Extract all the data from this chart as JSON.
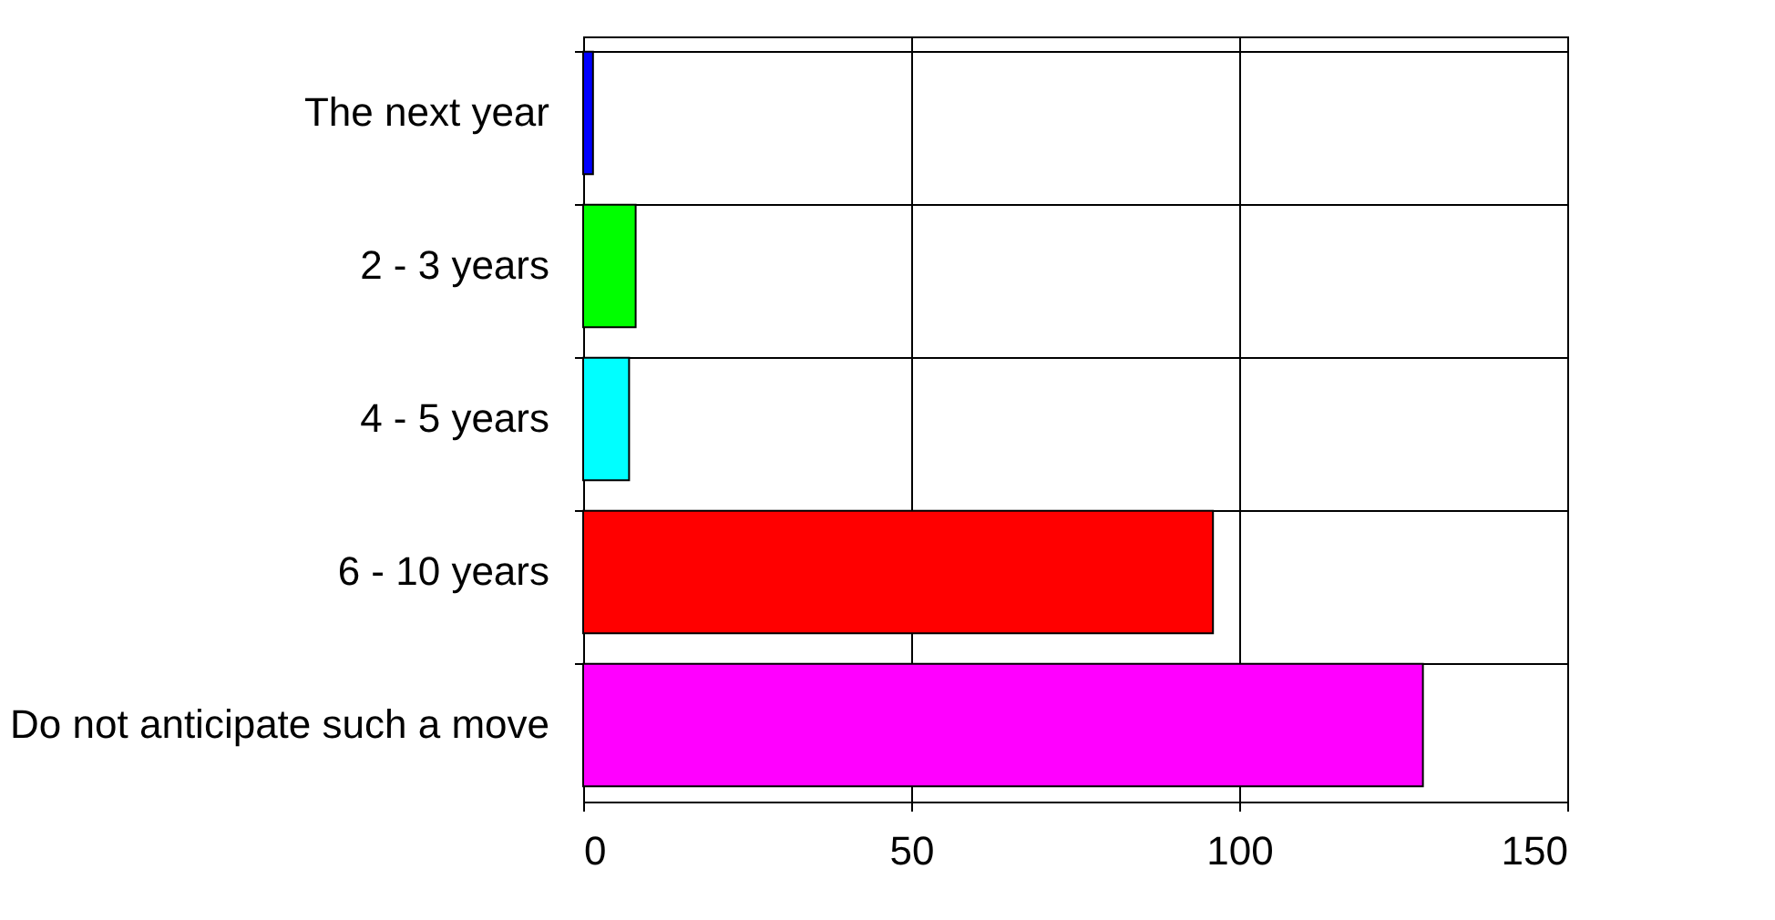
{
  "chart_data": {
    "type": "bar",
    "orientation": "horizontal",
    "categories": [
      "The next year",
      "2 - 3 years",
      "4 - 5 years",
      "6 - 10 years",
      "Do not anticipate such a move"
    ],
    "values": [
      1.5,
      8,
      7,
      96,
      128
    ],
    "colors": [
      "#0000ff",
      "#00ff00",
      "#00ffff",
      "#ff0000",
      "#ff00ff"
    ],
    "xlim": [
      0,
      150
    ],
    "xticks": [
      0,
      50,
      100,
      150
    ],
    "grid": true
  }
}
